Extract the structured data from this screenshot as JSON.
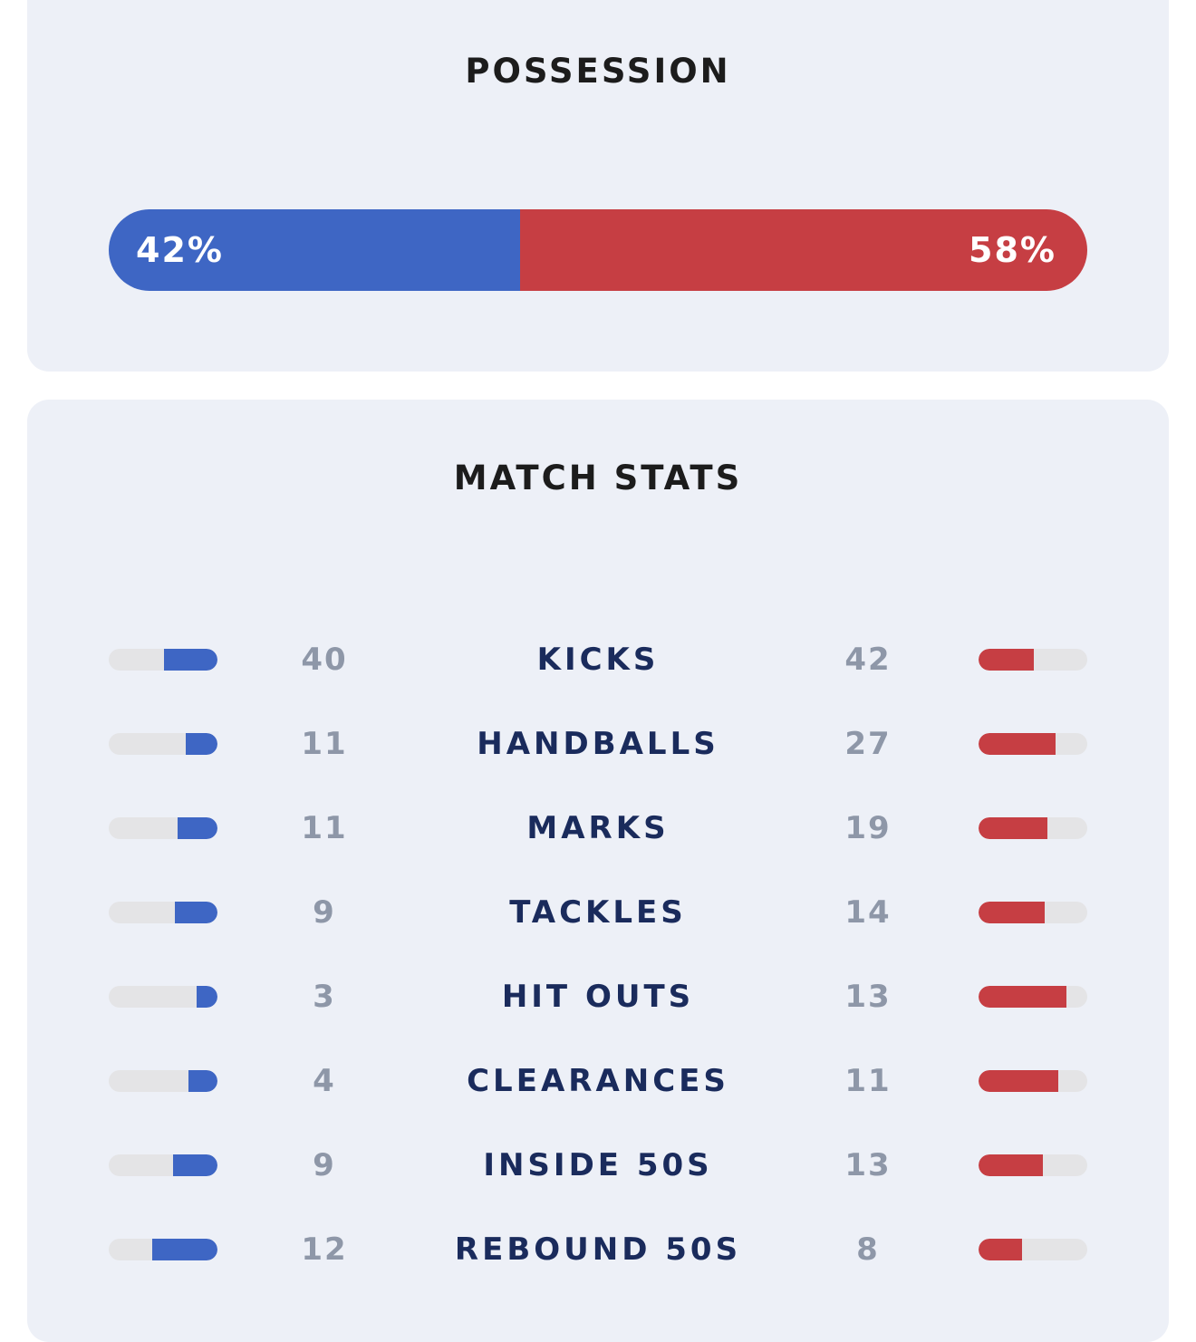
{
  "possession": {
    "title": "POSSESSION",
    "home_label": "42%",
    "away_label": "58%",
    "home_fraction": 0.42,
    "away_fraction": 0.58,
    "home_color": "#3e66c4",
    "away_color": "#c63e43"
  },
  "match_stats": {
    "title": "MATCH STATS",
    "rows": [
      {
        "name": "KICKS",
        "home": "40",
        "away": "42",
        "home_fill": 0.49,
        "away_fill": 0.51
      },
      {
        "name": "HANDBALLS",
        "home": "11",
        "away": "27",
        "home_fill": 0.29,
        "away_fill": 0.71
      },
      {
        "name": "MARKS",
        "home": "11",
        "away": "19",
        "home_fill": 0.37,
        "away_fill": 0.63
      },
      {
        "name": "TACKLES",
        "home": "9",
        "away": "14",
        "home_fill": 0.39,
        "away_fill": 0.61
      },
      {
        "name": "HIT OUTS",
        "home": "3",
        "away": "13",
        "home_fill": 0.19,
        "away_fill": 0.81
      },
      {
        "name": "CLEARANCES",
        "home": "4",
        "away": "11",
        "home_fill": 0.27,
        "away_fill": 0.73
      },
      {
        "name": "INSIDE 50S",
        "home": "9",
        "away": "13",
        "home_fill": 0.41,
        "away_fill": 0.59
      },
      {
        "name": "REBOUND 50S",
        "home": "12",
        "away": "8",
        "home_fill": 0.6,
        "away_fill": 0.4
      }
    ]
  }
}
